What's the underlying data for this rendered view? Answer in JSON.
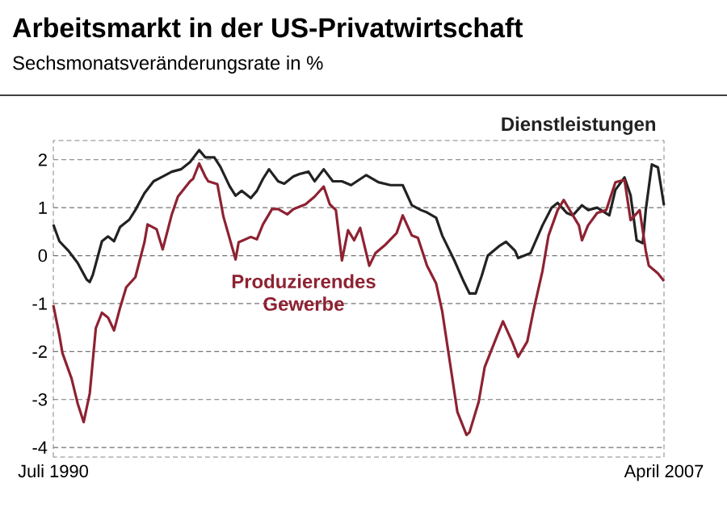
{
  "chart_data": {
    "type": "line",
    "title": "Arbeitsmarkt in der US-Privatwirtschaft",
    "subtitle": "Sechsmonatsveränderungsrate in %",
    "xlim": [
      "1990-07",
      "2007-04"
    ],
    "xticks": [
      {
        "value": "1990-07",
        "label": "Juli 1990"
      },
      {
        "value": "2007-04",
        "label": "April 2007"
      }
    ],
    "ylim": [
      -4.2,
      2.4
    ],
    "yticks": [
      -4,
      -3,
      -2,
      -1,
      0,
      1,
      2
    ],
    "grid": "y",
    "series": [
      {
        "name": "Dienstleistungen",
        "color": "#222222",
        "x": [
          "1990-07",
          "1990-09",
          "1990-12",
          "1991-03",
          "1991-06",
          "1991-07",
          "1991-08",
          "1991-11",
          "1992-01",
          "1992-03",
          "1992-05",
          "1992-08",
          "1992-10",
          "1993-01",
          "1993-04",
          "1993-07",
          "1993-10",
          "1994-01",
          "1994-04",
          "1994-07",
          "1994-09",
          "1994-12",
          "1995-02",
          "1995-05",
          "1995-07",
          "1995-09",
          "1995-12",
          "1996-02",
          "1996-04",
          "1996-06",
          "1996-09",
          "1996-11",
          "1997-02",
          "1997-04",
          "1997-07",
          "1997-09",
          "1997-12",
          "1998-03",
          "1998-06",
          "1998-09",
          "1999-02",
          "1999-06",
          "1999-10",
          "2000-02",
          "2000-05",
          "2000-08",
          "2000-10",
          "2001-01",
          "2001-03",
          "2001-07",
          "2001-10",
          "2001-12",
          "2002-02",
          "2002-04",
          "2002-06",
          "2002-10",
          "2002-12",
          "2003-03",
          "2003-04",
          "2003-08",
          "2003-12",
          "2004-03",
          "2004-05",
          "2004-08",
          "2004-10",
          "2005-01",
          "2005-03",
          "2005-06",
          "2005-10",
          "2005-12",
          "2006-03",
          "2006-05",
          "2006-07",
          "2006-09",
          "2006-10",
          "2006-12",
          "2007-02",
          "2007-04"
        ],
        "values": [
          0.65,
          0.3,
          0.1,
          -0.15,
          -0.5,
          -0.55,
          -0.4,
          0.3,
          0.4,
          0.3,
          0.6,
          0.75,
          0.95,
          1.3,
          1.55,
          1.65,
          1.75,
          1.8,
          1.95,
          2.2,
          2.05,
          2.05,
          1.85,
          1.45,
          1.25,
          1.35,
          1.2,
          1.35,
          1.6,
          1.8,
          1.55,
          1.5,
          1.65,
          1.7,
          1.75,
          1.55,
          1.8,
          1.55,
          1.55,
          1.47,
          1.68,
          1.53,
          1.47,
          1.47,
          1.05,
          0.95,
          0.9,
          0.79,
          0.42,
          -0.1,
          -0.53,
          -0.79,
          -0.79,
          -0.42,
          0,
          0.21,
          0.29,
          0.1,
          -0.05,
          0.05,
          0.63,
          1.0,
          1.1,
          0.89,
          0.84,
          1.05,
          0.95,
          1.0,
          0.84,
          1.37,
          1.63,
          1.26,
          0.32,
          0.26,
          0.95,
          1.9,
          1.84,
          1.05
        ]
      },
      {
        "name": "Produzierendes Gewerbe",
        "color": "#8e2232",
        "x": [
          "1990-07",
          "1990-09",
          "1990-10",
          "1991-01",
          "1991-03",
          "1991-05",
          "1991-07",
          "1991-09",
          "1991-11",
          "1992-01",
          "1992-03",
          "1992-05",
          "1992-07",
          "1992-10",
          "1993-01",
          "1993-02",
          "1993-05",
          "1993-07",
          "1993-10",
          "1993-12",
          "1994-04",
          "1994-05",
          "1994-07",
          "1994-09",
          "1994-10",
          "1995-01",
          "1995-03",
          "1995-07",
          "1995-08",
          "1995-12",
          "1996-02",
          "1996-04",
          "1996-07",
          "1996-09",
          "1996-12",
          "1997-02",
          "1997-06",
          "1997-09",
          "1997-12",
          "1998-02",
          "1998-04",
          "1998-06",
          "1998-08",
          "1998-10",
          "1998-12",
          "1999-03",
          "1999-05",
          "1999-08",
          "1999-12",
          "2000-02",
          "2000-05",
          "2000-07",
          "2000-10",
          "2001-01",
          "2001-03",
          "2001-06",
          "2001-08",
          "2001-11",
          "2001-12",
          "2002-03",
          "2002-05",
          "2002-09",
          "2002-11",
          "2003-02",
          "2003-04",
          "2003-07",
          "2003-09",
          "2003-12",
          "2004-02",
          "2004-05",
          "2004-07",
          "2004-10",
          "2004-12",
          "2005-01",
          "2005-03",
          "2005-06",
          "2005-09",
          "2005-12",
          "2006-03",
          "2006-05",
          "2006-08",
          "2006-10",
          "2006-11",
          "2007-02",
          "2007-04"
        ],
        "values": [
          -1.03,
          -1.66,
          -2.03,
          -2.56,
          -3.08,
          -3.47,
          -2.87,
          -1.51,
          -1.19,
          -1.29,
          -1.56,
          -1.08,
          -0.66,
          -0.45,
          0.28,
          0.65,
          0.55,
          0.13,
          0.86,
          1.23,
          1.55,
          1.6,
          1.92,
          1.65,
          1.55,
          1.49,
          0.81,
          -0.08,
          0.28,
          0.39,
          0.34,
          0.65,
          0.97,
          0.97,
          0.86,
          0.97,
          1.07,
          1.23,
          1.44,
          1.07,
          0.95,
          -0.1,
          0.53,
          0.32,
          0.58,
          -0.21,
          0.05,
          0.21,
          0.47,
          0.84,
          0.42,
          0.37,
          -0.21,
          -0.58,
          -1.16,
          -2.42,
          -3.26,
          -3.74,
          -3.68,
          -3.05,
          -2.32,
          -1.68,
          -1.37,
          -1.79,
          -2.11,
          -1.79,
          -1.16,
          -0.32,
          0.42,
          0.95,
          1.16,
          0.84,
          0.63,
          0.32,
          0.63,
          0.89,
          0.95,
          1.53,
          1.58,
          0.74,
          0.95,
          0.1,
          -0.21,
          -0.37,
          -0.53
        ]
      }
    ]
  }
}
